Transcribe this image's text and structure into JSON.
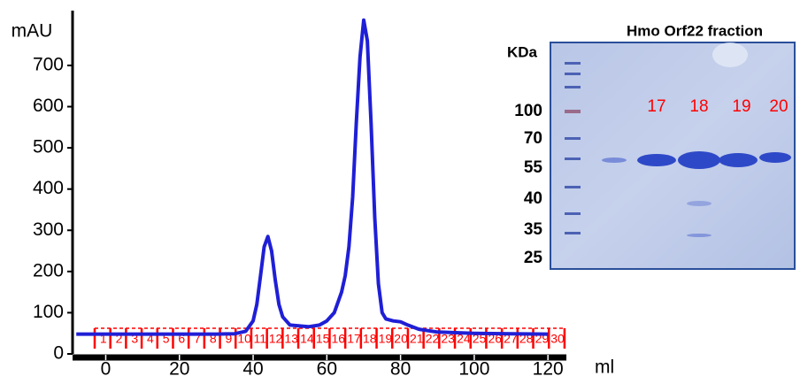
{
  "chart_data": {
    "type": "line",
    "y_unit": "mAU",
    "x_unit": "ml",
    "x": [
      -8,
      0,
      10,
      20,
      30,
      35,
      38,
      40,
      41,
      42,
      43,
      44,
      45,
      46,
      47,
      48,
      50,
      55,
      58,
      60,
      62,
      64,
      65,
      66,
      67,
      68,
      69,
      70,
      71,
      72,
      73,
      74,
      75,
      76,
      78,
      80,
      82,
      85,
      90,
      100,
      110,
      120
    ],
    "series": [
      {
        "color": "#1f1fd6",
        "values": [
          48,
          48,
          48,
          48,
          48,
          49,
          55,
          80,
          120,
          190,
          260,
          285,
          250,
          180,
          120,
          90,
          70,
          66,
          70,
          80,
          100,
          150,
          190,
          260,
          380,
          560,
          720,
          810,
          760,
          560,
          330,
          170,
          100,
          85,
          80,
          78,
          70,
          60,
          53,
          50,
          49,
          48
        ]
      }
    ],
    "xlim": [
      -9,
      125
    ],
    "ylim": [
      0,
      833
    ],
    "xticks": [
      0,
      20,
      40,
      60,
      80,
      100,
      120
    ],
    "yticks": [
      0,
      100,
      200,
      300,
      400,
      500,
      600,
      700
    ],
    "fractions": {
      "color": "#ff0000",
      "labels": [
        1,
        2,
        3,
        4,
        5,
        6,
        7,
        8,
        9,
        10,
        11,
        12,
        13,
        14,
        15,
        16,
        17,
        18,
        19,
        20,
        21,
        22,
        23,
        24,
        25,
        26,
        27,
        28,
        29,
        30
      ],
      "edges": [
        -3,
        1.25,
        5.5,
        9.75,
        14,
        18.25,
        22.5,
        26.75,
        31,
        35.25,
        39.5,
        43.75,
        48,
        52.25,
        56.5,
        60.75,
        65,
        69.25,
        73.5,
        77.75,
        82,
        86.25,
        90.5,
        94.75,
        99,
        103.25,
        107.5,
        111.75,
        116,
        120.25,
        124.5
      ]
    }
  },
  "gel": {
    "title": "Hmo Orf22 fraction",
    "unit": "KDa",
    "markers": [
      100,
      70,
      55,
      40,
      35,
      25
    ],
    "lanes": [
      17,
      18,
      19,
      20
    ]
  }
}
